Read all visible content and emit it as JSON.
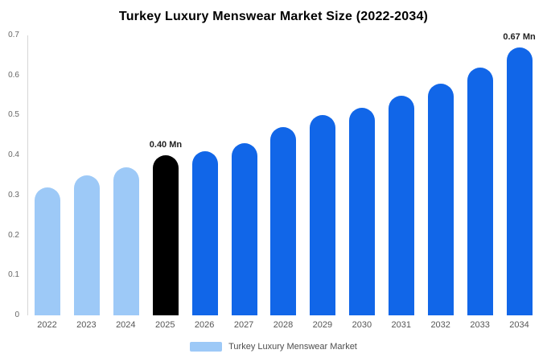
{
  "title": "Turkey Luxury Menswear Market Size (2022-2034)",
  "legend": {
    "label": "Turkey Luxury Menswear Market",
    "swatch_color": "#9dc9f7"
  },
  "colors": {
    "light_blue_bar": "#9dc9f7",
    "blue_bar": "#1166e8",
    "highlight_bar": "#000000",
    "axis_text": "#666666",
    "annotation_text": "#222222"
  },
  "chart_data": {
    "type": "bar",
    "title": "Turkey Luxury Menswear Market Size (2022-2034)",
    "categories": [
      "2022",
      "2023",
      "2024",
      "2025",
      "2026",
      "2027",
      "2028",
      "2029",
      "2030",
      "2031",
      "2032",
      "2033",
      "2034"
    ],
    "values": [
      0.32,
      0.35,
      0.37,
      0.4,
      0.41,
      0.43,
      0.47,
      0.5,
      0.52,
      0.55,
      0.58,
      0.62,
      0.67
    ],
    "bar_colors": [
      "#9dc9f7",
      "#9dc9f7",
      "#9dc9f7",
      "#000000",
      "#1166e8",
      "#1166e8",
      "#1166e8",
      "#1166e8",
      "#1166e8",
      "#1166e8",
      "#1166e8",
      "#1166e8",
      "#1166e8"
    ],
    "annotations": [
      {
        "category": "2025",
        "text": "0.40 Mn"
      },
      {
        "category": "2034",
        "text": "0.67 Mn"
      }
    ],
    "xlabel": "",
    "ylabel": "",
    "ylim": [
      0,
      0.7
    ],
    "yticks": [
      "0",
      "0.1",
      "0.2",
      "0.3",
      "0.4",
      "0.5",
      "0.6",
      "0.7"
    ],
    "grid": false,
    "legend_position": "bottom",
    "legend_entries": [
      "Turkey Luxury Menswear Market"
    ]
  }
}
